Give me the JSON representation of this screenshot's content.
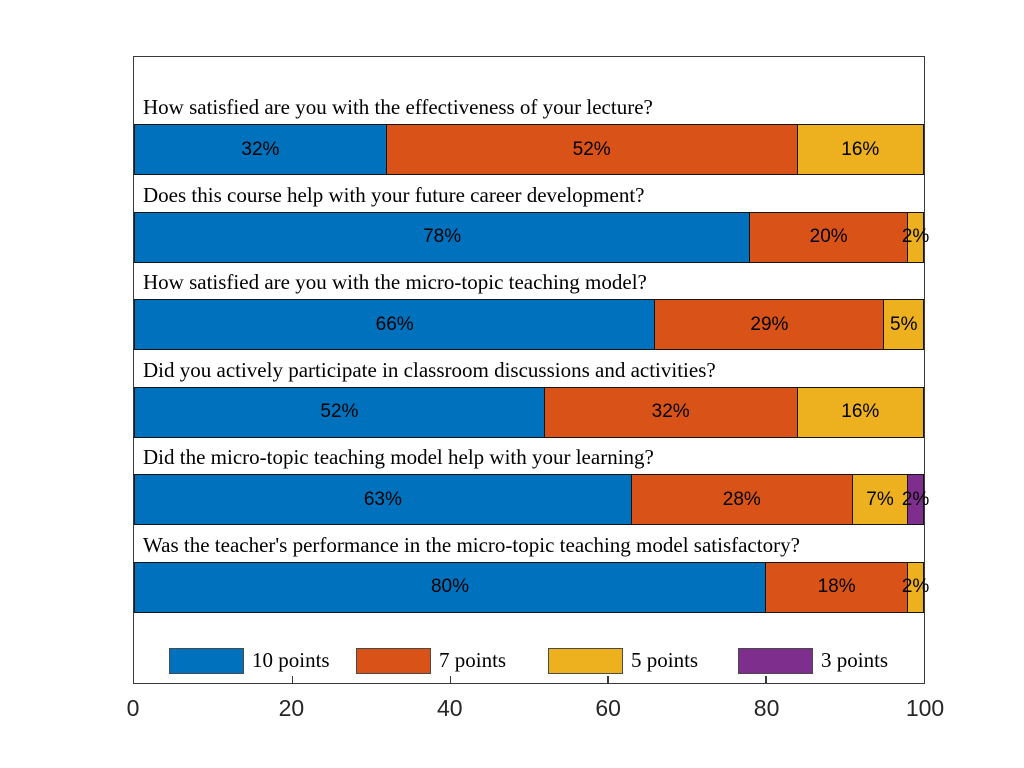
{
  "chart_data": {
    "type": "bar",
    "stacked": true,
    "orientation": "horizontal",
    "xlim": [
      0,
      100
    ],
    "x_ticks": [
      "0",
      "20",
      "40",
      "60",
      "80",
      "100"
    ],
    "x_tick_values": [
      0,
      20,
      40,
      60,
      80,
      100
    ],
    "grid": false,
    "legend_position": "bottom-inside",
    "value_label_format": "percent",
    "categories": [
      "How satisfied are you with the effectiveness of your lecture?",
      "Does this course help with your future career development?",
      "How satisfied are you with the micro-topic teaching model?",
      "Did you actively participate in classroom discussions and activities?",
      "Did the micro-topic teaching model help with your learning?",
      "Was the teacher's performance in the micro-topic teaching model satisfactory?"
    ],
    "series": [
      {
        "name": "10 points",
        "color": "#0072BD",
        "values": [
          32,
          78,
          66,
          52,
          63,
          80
        ]
      },
      {
        "name": "7 points",
        "color": "#D95319",
        "values": [
          52,
          20,
          29,
          32,
          28,
          18
        ]
      },
      {
        "name": "5 points",
        "color": "#EDB120",
        "values": [
          16,
          2,
          5,
          16,
          7,
          2
        ]
      },
      {
        "name": "3 points",
        "color": "#7E2F8E",
        "values": [
          0,
          0,
          0,
          0,
          2,
          0
        ]
      }
    ]
  }
}
